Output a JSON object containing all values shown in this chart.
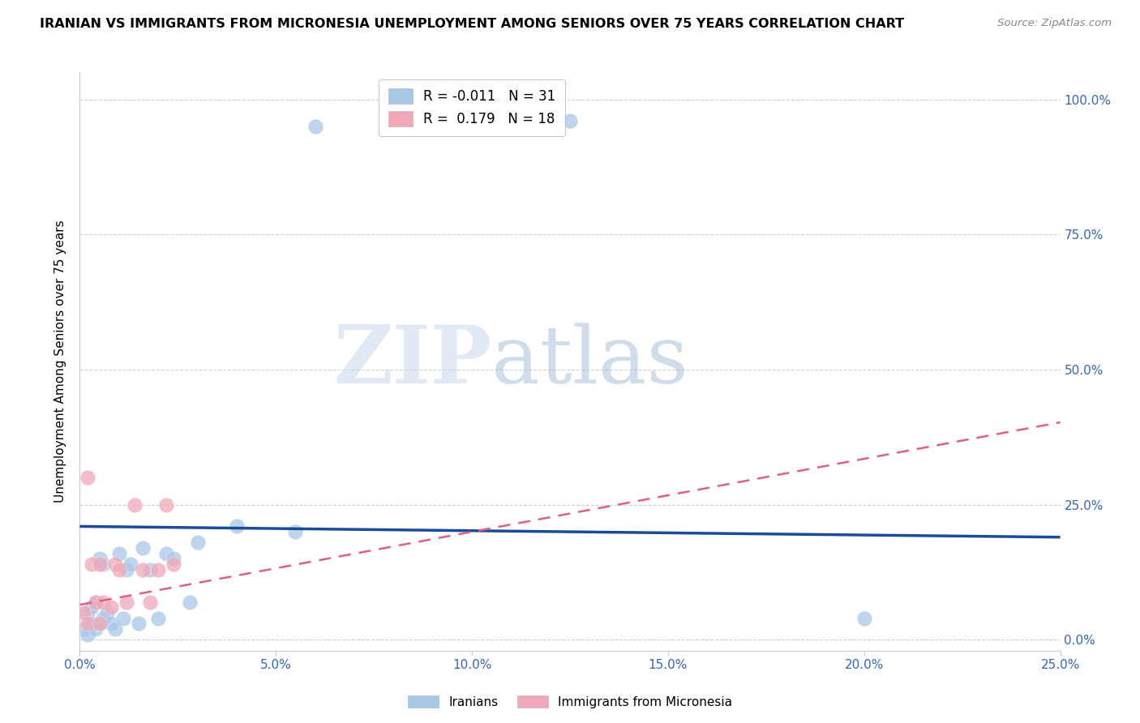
{
  "title": "IRANIAN VS IMMIGRANTS FROM MICRONESIA UNEMPLOYMENT AMONG SENIORS OVER 75 YEARS CORRELATION CHART",
  "source": "Source: ZipAtlas.com",
  "ylabel": "Unemployment Among Seniors over 75 years",
  "xlim": [
    0.0,
    0.25
  ],
  "ylim": [
    -0.02,
    1.05
  ],
  "xticks": [
    0.0,
    0.05,
    0.1,
    0.15,
    0.2,
    0.25
  ],
  "yticks": [
    0.0,
    0.25,
    0.5,
    0.75,
    1.0
  ],
  "ytick_labels_right": [
    "0.0%",
    "25.0%",
    "50.0%",
    "75.0%",
    "100.0%"
  ],
  "xtick_labels": [
    "0.0%",
    "5.0%",
    "10.0%",
    "15.0%",
    "20.0%",
    "25.0%"
  ],
  "iranians_x": [
    0.001,
    0.002,
    0.002,
    0.003,
    0.003,
    0.004,
    0.004,
    0.005,
    0.005,
    0.006,
    0.006,
    0.007,
    0.008,
    0.009,
    0.01,
    0.011,
    0.012,
    0.013,
    0.015,
    0.016,
    0.018,
    0.02,
    0.022,
    0.024,
    0.028,
    0.03,
    0.04,
    0.055,
    0.06,
    0.125,
    0.2
  ],
  "iranians_y": [
    0.02,
    0.01,
    0.05,
    0.03,
    0.06,
    0.02,
    0.07,
    0.03,
    0.15,
    0.04,
    0.14,
    0.05,
    0.03,
    0.02,
    0.16,
    0.04,
    0.13,
    0.14,
    0.03,
    0.17,
    0.13,
    0.04,
    0.16,
    0.15,
    0.07,
    0.18,
    0.21,
    0.2,
    0.95,
    0.96,
    0.04
  ],
  "micronesia_x": [
    0.001,
    0.002,
    0.002,
    0.003,
    0.004,
    0.005,
    0.005,
    0.006,
    0.008,
    0.009,
    0.01,
    0.012,
    0.014,
    0.016,
    0.018,
    0.02,
    0.022,
    0.024
  ],
  "micronesia_y": [
    0.05,
    0.3,
    0.03,
    0.14,
    0.07,
    0.03,
    0.14,
    0.07,
    0.06,
    0.14,
    0.13,
    0.07,
    0.25,
    0.13,
    0.07,
    0.13,
    0.25,
    0.14
  ],
  "iranian_color": "#a8c8e8",
  "micronesia_color": "#f0a8b8",
  "iranian_line_color": "#1a4a9a",
  "micronesia_line_color": "#e06080",
  "r_iranian": -0.011,
  "n_iranian": 31,
  "r_micronesia": 0.179,
  "n_micronesia": 18,
  "background_color": "#ffffff",
  "grid_color": "#d0d0d0",
  "watermark_zip_color": "#c8d8ee",
  "watermark_atlas_color": "#a0b8d0"
}
